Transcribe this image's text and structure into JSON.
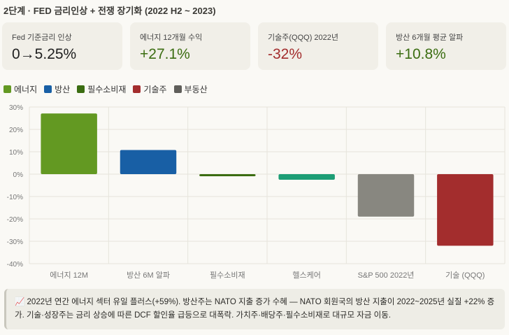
{
  "title": "2단계 · FED 금리인상 + 전쟁 장기화 (2022 H2 ~ 2023)",
  "cards": [
    {
      "label": "Fed 기준금리 인상",
      "value": "0→5.25%",
      "color": "#1f1f1f"
    },
    {
      "label": "에너지 12개월 수익",
      "value": "+27.1%",
      "color": "#3b6d11"
    },
    {
      "label": "기술주(QQQ) 2022년",
      "value": "-32%",
      "color": "#a32d2d"
    },
    {
      "label": "방산 6개월 평균 알파",
      "value": "+10.8%",
      "color": "#3b6d11"
    }
  ],
  "legend": [
    {
      "label": "에너지",
      "color": "#639922"
    },
    {
      "label": "방산",
      "color": "#185fa5"
    },
    {
      "label": "필수소비재",
      "color": "#3b6d11"
    },
    {
      "label": "기술주",
      "color": "#a32d2d"
    },
    {
      "label": "부동산",
      "color": "#5f5e5a"
    }
  ],
  "chart_data": {
    "type": "bar",
    "categories": [
      "에너지 12M",
      "방산 6M 알파",
      "필수소비재",
      "헬스케어",
      "S&P 500 2022년",
      "기술 (QQQ)"
    ],
    "values": [
      27.1,
      10.8,
      -0.8,
      -2.5,
      -19,
      -32
    ],
    "colors": [
      "#639922",
      "#185fa5",
      "#3b6d11",
      "#1d9e75",
      "#888780",
      "#a32d2d"
    ],
    "ylim": [
      -40,
      30
    ],
    "yticks": [
      "30%",
      "20%",
      "10%",
      "0%",
      "-10%",
      "-20%",
      "-30%",
      "-40%"
    ],
    "grid": true
  },
  "note": {
    "icon": "📈",
    "text": "2022년 연간 에너지 섹터 유일 플러스(+59%). 방산주는 NATO 지출 증가 수혜 — NATO 회원국의 방산 지출이 2022~2025년 실질 +22% 증가. 기술·성장주는 금리 상승에 따른 DCF 할인율 급등으로 대폭락. 가치주·배당주·필수소비재로 대규모 자금 이동."
  }
}
